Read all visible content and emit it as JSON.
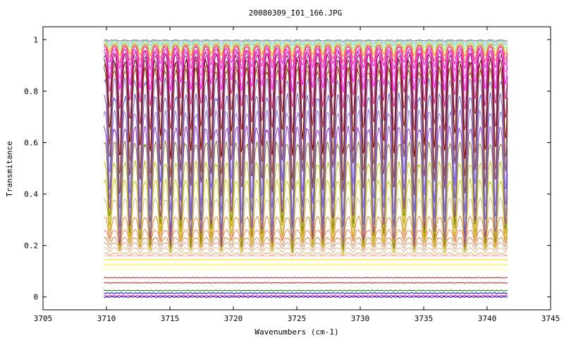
{
  "chart_data": {
    "type": "line",
    "title": "20080309_I01_166.JPG",
    "xlabel": "Wavenumbers (cm-1)",
    "ylabel": "Transmitance",
    "xlim": [
      3705,
      3745
    ],
    "ylim": [
      -0.05,
      1.05
    ],
    "x_range_data": [
      3709.8,
      3741.6
    ],
    "x_ticks": [
      3705,
      3710,
      3715,
      3720,
      3725,
      3730,
      3735,
      3740,
      3745
    ],
    "x_tick_labels": [
      "3705",
      "3710",
      "3715",
      "3720",
      "3725",
      "3730",
      "3735",
      "3740",
      "3745"
    ],
    "y_ticks": [
      0,
      0.2,
      0.4,
      0.6,
      0.8,
      1
    ],
    "y_tick_labels": [
      "0",
      "0.2",
      "0.4",
      "0.6",
      "0.8",
      "1"
    ],
    "grid": false,
    "legend": "none",
    "series": [
      {
        "baseline": 0.0,
        "absorption": 0.0,
        "color": "#00008b"
      },
      {
        "baseline": 0.005,
        "absorption": 0.0,
        "color": "#ff00ff"
      },
      {
        "baseline": 0.015,
        "absorption": 0.0,
        "color": "#0000ff"
      },
      {
        "baseline": 0.025,
        "absorption": 0.0,
        "color": "#008000"
      },
      {
        "baseline": 0.055,
        "absorption": 0.0,
        "color": "#b22222"
      },
      {
        "baseline": 0.075,
        "absorption": 0.0,
        "color": "#a52a2a"
      },
      {
        "baseline": 0.105,
        "absorption": 0.0,
        "color": "#ffff99"
      },
      {
        "baseline": 0.125,
        "absorption": 0.0,
        "color": "#ffff00"
      },
      {
        "baseline": 0.145,
        "absorption": 0.0,
        "color": "#ffe000"
      },
      {
        "baseline": 0.16,
        "absorption": 0.0,
        "color": "#ffb6c1"
      },
      {
        "baseline": 0.17,
        "absorption": 0.01,
        "color": "#f4a460"
      },
      {
        "baseline": 0.19,
        "absorption": 0.02,
        "color": "#deb887"
      },
      {
        "baseline": 0.21,
        "absorption": 0.03,
        "color": "#e9967a"
      },
      {
        "baseline": 0.23,
        "absorption": 0.04,
        "color": "#cd853f"
      },
      {
        "baseline": 0.26,
        "absorption": 0.06,
        "color": "#ff7f50"
      },
      {
        "baseline": 0.31,
        "absorption": 0.12,
        "color": "#f08030"
      },
      {
        "baseline": 0.38,
        "absorption": 0.2,
        "color": "#d2b48c"
      },
      {
        "baseline": 0.45,
        "absorption": 0.28,
        "color": "#c8c800"
      },
      {
        "baseline": 0.52,
        "absorption": 0.34,
        "color": "#b8b800"
      },
      {
        "baseline": 0.6,
        "absorption": 0.42,
        "color": "#808000"
      },
      {
        "baseline": 0.66,
        "absorption": 0.46,
        "color": "#9932cc"
      },
      {
        "baseline": 0.72,
        "absorption": 0.5,
        "color": "#9370db"
      },
      {
        "baseline": 0.78,
        "absorption": 0.52,
        "color": "#6a5acd"
      },
      {
        "baseline": 0.84,
        "absorption": 0.52,
        "color": "#7b68ee"
      },
      {
        "baseline": 0.88,
        "absorption": 0.48,
        "color": "#8b4513"
      },
      {
        "baseline": 0.9,
        "absorption": 0.44,
        "color": "#a0522d"
      },
      {
        "baseline": 0.92,
        "absorption": 0.38,
        "color": "#800000"
      },
      {
        "baseline": 0.94,
        "absorption": 0.3,
        "color": "#8b2252"
      },
      {
        "baseline": 0.95,
        "absorption": 0.22,
        "color": "#c71585"
      },
      {
        "baseline": 0.96,
        "absorption": 0.16,
        "color": "#ff00ff"
      },
      {
        "baseline": 0.97,
        "absorption": 0.12,
        "color": "#da70d6"
      },
      {
        "baseline": 0.975,
        "absorption": 0.09,
        "color": "#ff1493"
      },
      {
        "baseline": 0.98,
        "absorption": 0.07,
        "color": "#ff6347"
      },
      {
        "baseline": 0.985,
        "absorption": 0.05,
        "color": "#ff8c00"
      },
      {
        "baseline": 0.99,
        "absorption": 0.04,
        "color": "#98fb98"
      },
      {
        "baseline": 0.993,
        "absorption": 0.03,
        "color": "#90ee90"
      },
      {
        "baseline": 0.995,
        "absorption": 0.02,
        "color": "#87ceeb"
      },
      {
        "baseline": 0.997,
        "absorption": 0.015,
        "color": "#add8e6"
      },
      {
        "baseline": 0.998,
        "absorption": 0.01,
        "color": "#c0c0c0"
      },
      {
        "baseline": 0.999,
        "absorption": 0.005,
        "color": "#808080"
      }
    ]
  }
}
